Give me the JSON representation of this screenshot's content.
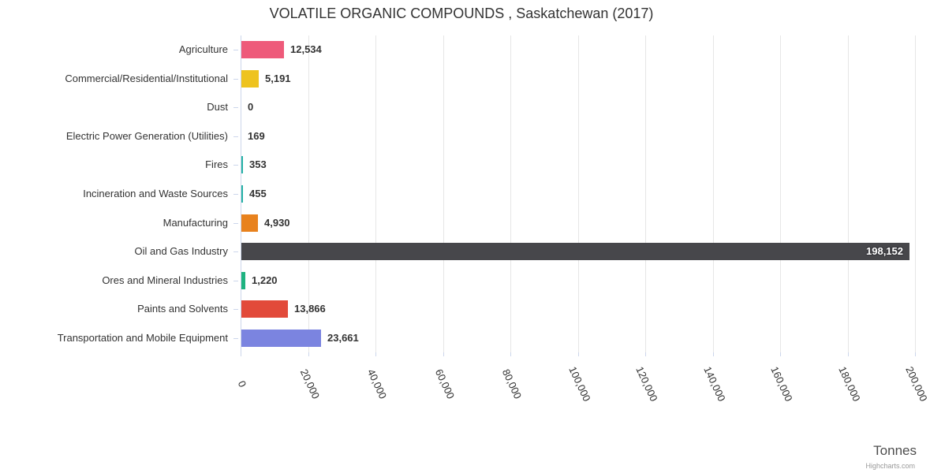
{
  "title": "VOLATILE ORGANIC COMPOUNDS , Saskatchewan (2017)",
  "credits": "Highcharts.com",
  "chart_data": {
    "type": "bar",
    "orientation": "horizontal",
    "title": "VOLATILE ORGANIC COMPOUNDS , Saskatchewan (2017)",
    "xlabel": "Tonnes",
    "ylabel": "",
    "categories": [
      "Agriculture",
      "Commercial/Residential/Institutional",
      "Dust",
      "Electric Power Generation (Utilities)",
      "Fires",
      "Incineration and Waste Sources",
      "Manufacturing",
      "Oil and Gas Industry",
      "Ores and Mineral Industries",
      "Paints and Solvents",
      "Transportation and Mobile Equipment"
    ],
    "values": [
      12534,
      5191,
      0,
      169,
      353,
      455,
      4930,
      198152,
      1220,
      13866,
      23661
    ],
    "value_labels": [
      "12,534",
      "5,191",
      "0",
      "169",
      "353",
      "455",
      "4,930",
      "198,152",
      "1,220",
      "13,866",
      "23,661"
    ],
    "colors": [
      "#ee5a7a",
      "#eec31f",
      "#b0b0b0",
      "#5a9bd4",
      "#25b1a5",
      "#25b1a5",
      "#e8821e",
      "#47474b",
      "#1eb380",
      "#e24a3a",
      "#7b84e0"
    ],
    "xlim": [
      0,
      200000
    ],
    "xticks": [
      0,
      20000,
      40000,
      60000,
      80000,
      100000,
      120000,
      140000,
      160000,
      180000,
      200000
    ],
    "xtick_labels": [
      "0",
      "20,000",
      "40,000",
      "60,000",
      "80,000",
      "100,000",
      "120,000",
      "140,000",
      "160,000",
      "180,000",
      "200,000"
    ],
    "grid": true,
    "legend": "none",
    "style": {
      "grid_color": "#e6e6e6",
      "axis_color": "#ccd6eb",
      "label_color": "#333333",
      "inside_label_color": "#ffffff",
      "title_color": "#333333"
    }
  }
}
